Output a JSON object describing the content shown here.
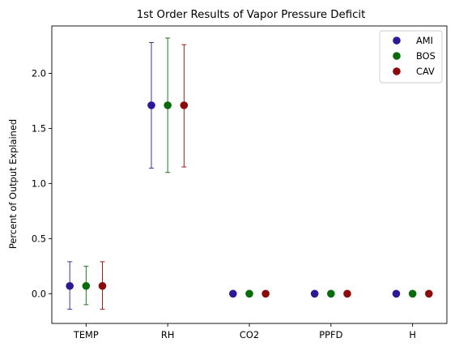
{
  "chart_data": {
    "type": "scatter",
    "title": "1st Order Results of Vapor Pressure Deficit",
    "xlabel": "",
    "ylabel": "Percent of Output Explained",
    "categories": [
      "TEMP",
      "RH",
      "CO2",
      "PPFD",
      "H"
    ],
    "ylim": [
      -0.27,
      2.43
    ],
    "yticks": [
      0.0,
      0.5,
      1.0,
      1.5,
      2.0
    ],
    "ytick_labels": [
      "0.0",
      "0.5",
      "1.0",
      "1.5",
      "2.0"
    ],
    "grid": false,
    "legend_position": "top-right",
    "series": [
      {
        "name": "AMI",
        "color": "#2a1a96",
        "offset": -0.2,
        "values": [
          0.07,
          1.71,
          0.0,
          0.0,
          0.0
        ],
        "err_low": [
          -0.14,
          1.14,
          null,
          null,
          null
        ],
        "err_high": [
          0.29,
          2.28,
          null,
          null,
          null
        ]
      },
      {
        "name": "BOS",
        "color": "#0a6b0a",
        "offset": 0.0,
        "values": [
          0.07,
          1.71,
          0.0,
          0.0,
          0.0
        ],
        "err_low": [
          -0.1,
          1.1,
          null,
          null,
          null
        ],
        "err_high": [
          0.25,
          2.32,
          null,
          null,
          null
        ]
      },
      {
        "name": "CAV",
        "color": "#8b0a0a",
        "offset": 0.2,
        "values": [
          0.07,
          1.71,
          0.0,
          0.0,
          0.0
        ],
        "err_low": [
          -0.14,
          1.15,
          null,
          null,
          null
        ],
        "err_high": [
          0.29,
          2.26,
          null,
          null,
          null
        ]
      }
    ]
  }
}
